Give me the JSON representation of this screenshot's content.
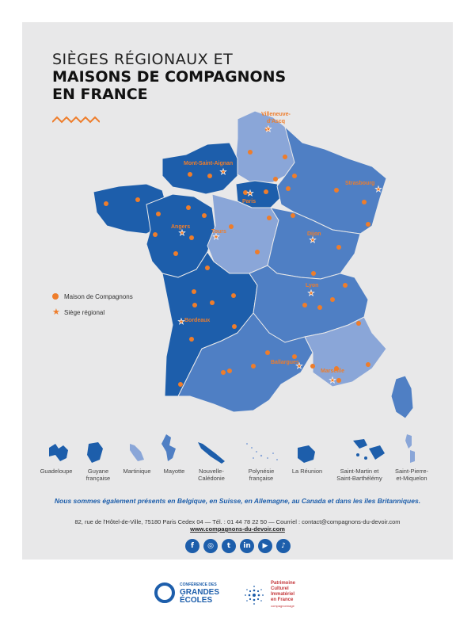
{
  "title": {
    "line1": "SIÈGES RÉGIONAUX ET",
    "line2": "MAISONS DE COMPAGNONS",
    "line3": "EN FRANCE"
  },
  "colors": {
    "dark_blue": "#1d5eab",
    "mid_blue": "#4f7fc4",
    "light_blue": "#8aa6d8",
    "orange": "#ee7d2b",
    "panel": "#e8e8e9"
  },
  "legend": {
    "maison": "Maison de Compagnons",
    "siege": "Siège régional"
  },
  "sieges": [
    {
      "name": "Villeneuve-d'Ascq",
      "line1": "Villeneuve-",
      "line2": "d'Ascq"
    },
    {
      "name": "Mont-Saint-Aignan"
    },
    {
      "name": "Paris"
    },
    {
      "name": "Strasbourg"
    },
    {
      "name": "Angers"
    },
    {
      "name": "Tours"
    },
    {
      "name": "Dijon"
    },
    {
      "name": "Lyon"
    },
    {
      "name": "Bordeaux"
    },
    {
      "name": "Ballargues"
    },
    {
      "name": "Marseille"
    }
  ],
  "territories": [
    {
      "line1": "Guadeloupe",
      "line2": ""
    },
    {
      "line1": "Guyane",
      "line2": "française"
    },
    {
      "line1": "Martinique",
      "line2": ""
    },
    {
      "line1": "Mayotte",
      "line2": ""
    },
    {
      "line1": "Nouvelle-",
      "line2": "Calédonie"
    },
    {
      "line1": "Polynésie",
      "line2": "française"
    },
    {
      "line1": "La Réunion",
      "line2": ""
    },
    {
      "line1": "Saint-Martin et",
      "line2": "Saint-Barthélémy"
    },
    {
      "line1": "Saint-Pierre-",
      "line2": "et-Miquelon"
    }
  ],
  "also_present": "Nous sommes également présents en Belgique, en Suisse, en Allemagne, au Canada et dans les îles Britanniques.",
  "address": "82, rue de l'Hôtel-de-Ville, 75180 Paris Cedex 04 — Tél. : 01 44 78 22 50 — Courriel : contact@compagnons-du-devoir.com",
  "website": "www.compagnons-du-devoir.com",
  "social_icons": [
    "facebook-icon",
    "instagram-icon",
    "twitter-icon",
    "linkedin-icon",
    "youtube-icon",
    "tiktok-icon"
  ],
  "social_glyphs": [
    "f",
    "◎",
    "t",
    "in",
    "▶",
    "♪"
  ],
  "logos": {
    "cge_small": "CONFÉRENCE DES",
    "cge_big1": "GRANDES",
    "cge_big2": "ÉCOLES",
    "pci1": "Patrimoine",
    "pci2": "Culturel",
    "pci3": "Immatériel",
    "pci4": "en France",
    "pci_sub": "compagnonnage"
  }
}
